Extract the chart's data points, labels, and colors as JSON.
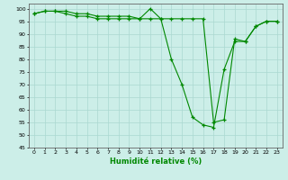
{
  "xlabel": "Humidité relative (%)",
  "xlim": [
    -0.5,
    23.5
  ],
  "ylim": [
    45,
    102
  ],
  "yticks": [
    45,
    50,
    55,
    60,
    65,
    70,
    75,
    80,
    85,
    90,
    95,
    100
  ],
  "xticks": [
    0,
    1,
    2,
    3,
    4,
    5,
    6,
    7,
    8,
    9,
    10,
    11,
    12,
    13,
    14,
    15,
    16,
    17,
    18,
    19,
    20,
    21,
    22,
    23
  ],
  "background_color": "#cceee8",
  "grid_color": "#aad8d0",
  "line_color": "#008800",
  "line1": [
    98,
    99,
    99,
    99,
    98,
    98,
    97,
    97,
    97,
    97,
    96,
    100,
    96,
    80,
    70,
    57,
    54,
    53,
    76,
    87,
    87,
    93,
    95,
    95
  ],
  "line2": [
    98,
    99,
    99,
    98,
    97,
    97,
    96,
    96,
    96,
    96,
    96,
    96,
    96,
    96,
    96,
    96,
    96,
    55,
    56,
    88,
    87,
    93,
    95,
    95
  ]
}
